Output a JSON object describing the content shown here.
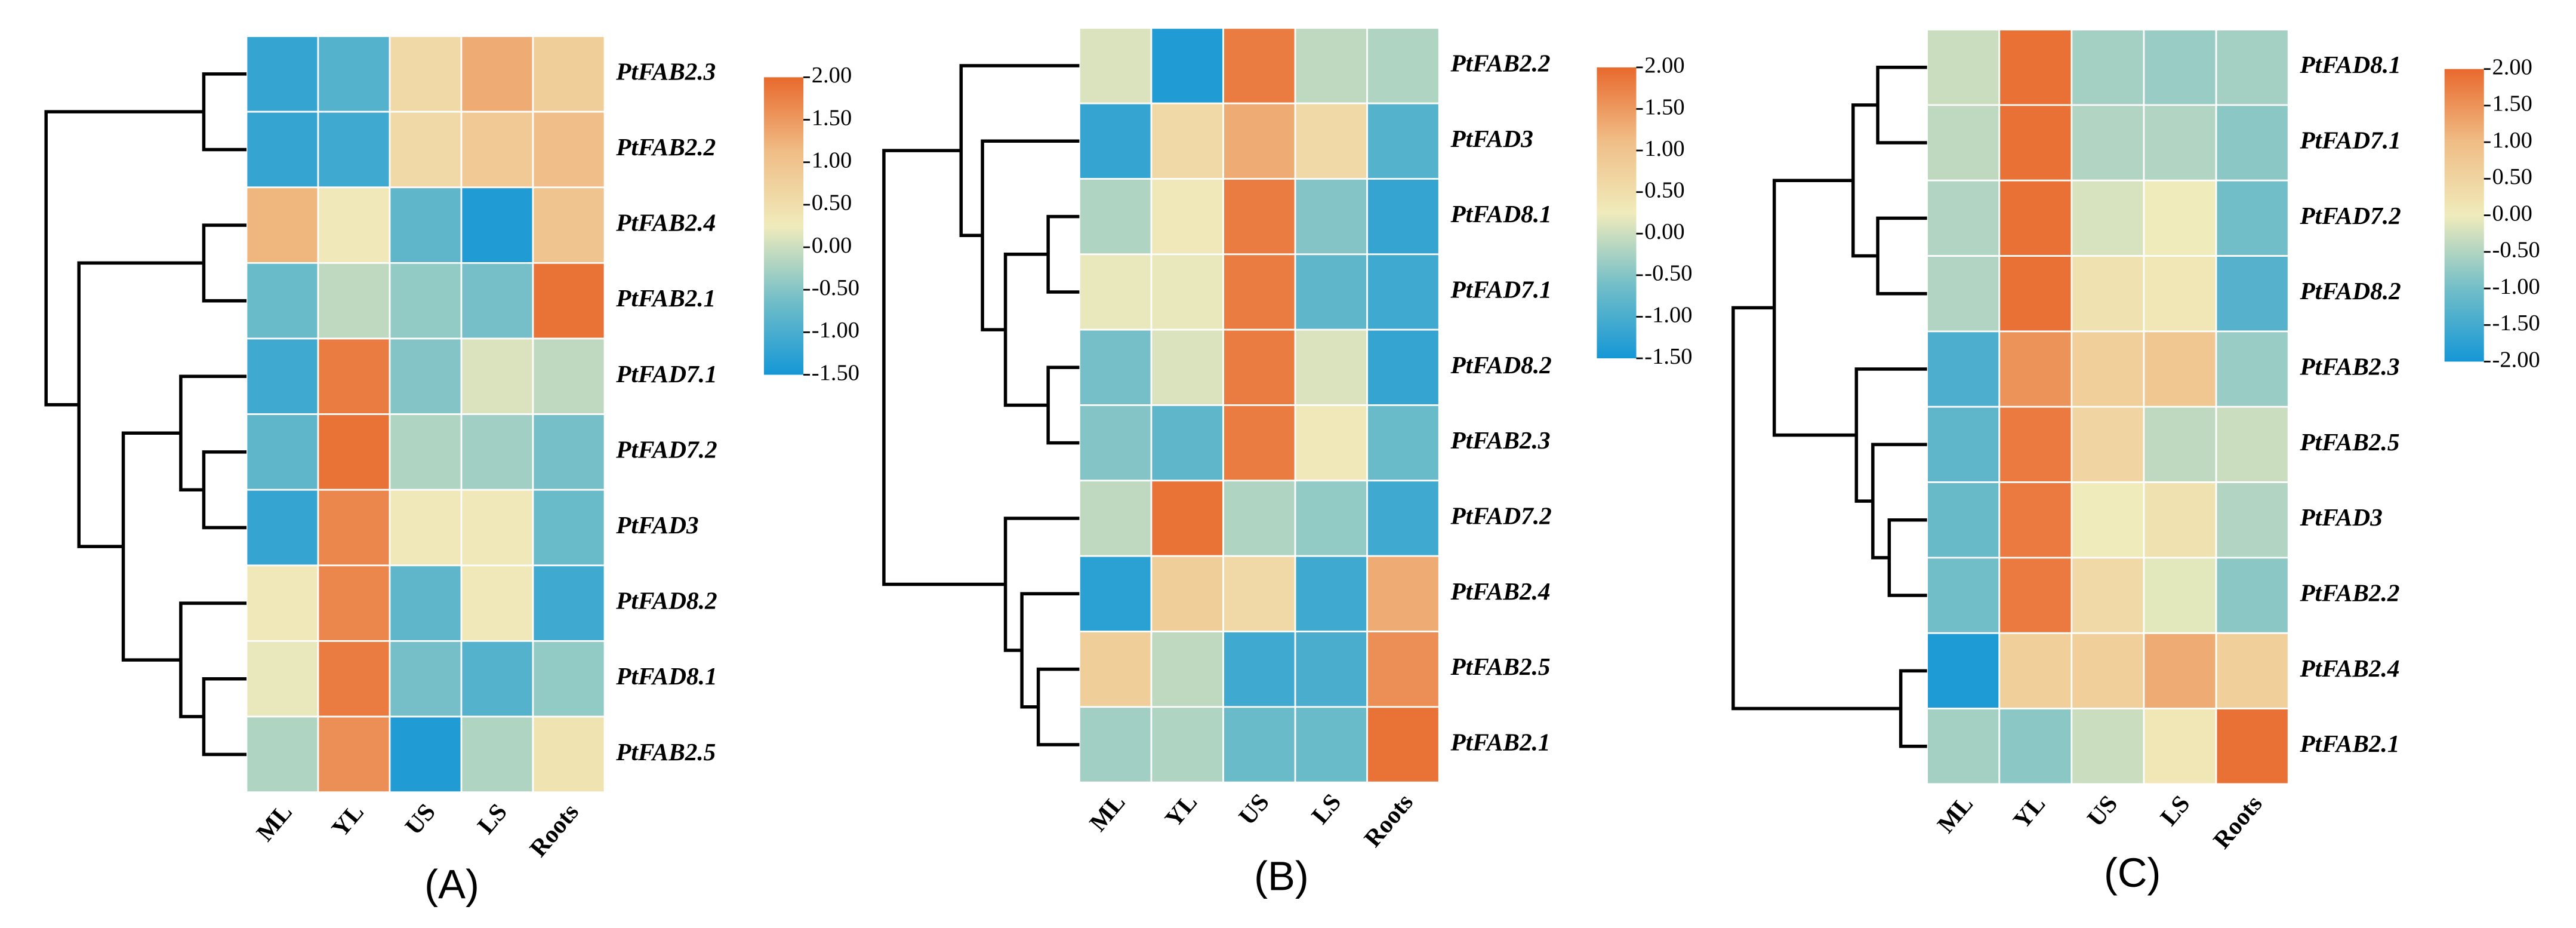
{
  "chart_data": [
    {
      "type": "heatmap",
      "label": "(A)",
      "rows": [
        "PtFAB2.3",
        "PtFAB2.2",
        "PtFAB2.4",
        "PtFAB2.1",
        "PtFAD7.1",
        "PtFAD7.2",
        "PtFAD3",
        "PtFAD8.2",
        "PtFAD8.1",
        "PtFAB2.5"
      ],
      "columns": [
        "ML",
        "YL",
        "US",
        "LS",
        "Roots"
      ],
      "values": [
        [
          -1.2,
          -0.9,
          0.6,
          1.3,
          0.8
        ],
        [
          -1.2,
          -1.1,
          0.6,
          0.9,
          1.1
        ],
        [
          1.2,
          0.3,
          -0.8,
          -1.4,
          1.0
        ],
        [
          -0.7,
          -0.1,
          -0.4,
          -0.6,
          1.9
        ],
        [
          -1.1,
          1.8,
          -0.5,
          0.1,
          -0.1
        ],
        [
          -0.8,
          1.9,
          -0.2,
          -0.3,
          -0.6
        ],
        [
          -1.2,
          1.7,
          0.3,
          0.3,
          -0.7
        ],
        [
          0.3,
          1.7,
          -0.8,
          0.3,
          -1.1
        ],
        [
          0.2,
          1.8,
          -0.6,
          -0.9,
          -0.4
        ],
        [
          -0.2,
          1.6,
          -1.4,
          -0.2,
          0.4
        ]
      ],
      "clim": [
        -1.5,
        2
      ],
      "cticks": [
        {
          "value": 2,
          "label": "2.00"
        },
        {
          "value": 1.5,
          "label": "1.50"
        },
        {
          "value": 1,
          "label": "1.00"
        },
        {
          "value": 0.5,
          "label": "0.50"
        },
        {
          "value": 0,
          "label": "0.00"
        },
        {
          "value": -0.5,
          "label": "-0.50"
        },
        {
          "value": -1,
          "label": "-1.00"
        },
        {
          "value": -1.5,
          "label": "-1.50"
        }
      ],
      "colormap": [
        "#1597d6",
        "#72bec8",
        "#f0ebbb",
        "#f0bd86",
        "#e8692d"
      ]
    },
    {
      "type": "heatmap",
      "label": "(B)",
      "rows": [
        "PtFAB2.2",
        "PtFAD3",
        "PtFAD8.1",
        "PtFAD7.1",
        "PtFAD8.2",
        "PtFAB2.3",
        "PtFAD7.2",
        "PtFAB2.4",
        "PtFAB2.5",
        "PtFAB2.1"
      ],
      "columns": [
        "ML",
        "YL",
        "US",
        "LS",
        "Roots"
      ],
      "values": [
        [
          0.1,
          -1.4,
          1.8,
          -0.1,
          -0.2
        ],
        [
          -1.2,
          0.6,
          1.3,
          0.6,
          -0.9
        ],
        [
          -0.2,
          0.3,
          1.8,
          -0.5,
          -1.2
        ],
        [
          0.2,
          0.2,
          1.8,
          -0.8,
          -1.1
        ],
        [
          -0.6,
          0.1,
          1.8,
          0.1,
          -1.2
        ],
        [
          -0.5,
          -0.8,
          1.8,
          0.3,
          -0.7
        ],
        [
          -0.1,
          1.9,
          -0.2,
          -0.4,
          -1.1
        ],
        [
          -1.3,
          0.8,
          0.6,
          -1.1,
          1.3
        ],
        [
          0.8,
          -0.1,
          -1.1,
          -1.0,
          1.6
        ],
        [
          -0.3,
          -0.2,
          -0.7,
          -0.7,
          1.9
        ]
      ],
      "clim": [
        -1.5,
        2
      ],
      "cticks": [
        {
          "value": 2,
          "label": "2.00"
        },
        {
          "value": 1.5,
          "label": "1.50"
        },
        {
          "value": 1,
          "label": "1.00"
        },
        {
          "value": 0.5,
          "label": "0.50"
        },
        {
          "value": 0,
          "label": "0.00"
        },
        {
          "value": -0.5,
          "label": "-0.50"
        },
        {
          "value": -1,
          "label": "-1.00"
        },
        {
          "value": -1.5,
          "label": "-1.50"
        }
      ],
      "colormap": [
        "#1597d6",
        "#72bec8",
        "#f0ebbb",
        "#f0bd86",
        "#e8692d"
      ]
    },
    {
      "type": "heatmap",
      "label": "(C)",
      "rows": [
        "PtFAD8.1",
        "PtFAD7.1",
        "PtFAD7.2",
        "PtFAD8.2",
        "PtFAB2.3",
        "PtFAB2.5",
        "PtFAD3",
        "PtFAB2.2",
        "PtFAB2.4",
        "PtFAB2.1"
      ],
      "columns": [
        "ML",
        "YL",
        "US",
        "LS",
        "Roots"
      ],
      "values": [
        [
          -0.3,
          1.9,
          -0.6,
          -0.7,
          -0.6
        ],
        [
          -0.4,
          1.9,
          -0.5,
          -0.5,
          -0.8
        ],
        [
          -0.5,
          1.9,
          -0.2,
          0,
          -1.0
        ],
        [
          -0.5,
          1.9,
          0.2,
          0.1,
          -1.3
        ],
        [
          -1.4,
          1.5,
          0.6,
          0.8,
          -0.7
        ],
        [
          -1.2,
          1.8,
          0.5,
          -0.4,
          -0.3
        ],
        [
          -1.1,
          1.8,
          0,
          0.2,
          -0.5
        ],
        [
          -1.0,
          1.8,
          0.4,
          -0.1,
          -0.8
        ],
        [
          -1.9,
          0.6,
          0.6,
          1.2,
          0.6
        ],
        [
          -0.6,
          -0.8,
          -0.3,
          0.1,
          1.9
        ]
      ],
      "clim": [
        -2,
        2
      ],
      "cticks": [
        {
          "value": 2,
          "label": "2.00"
        },
        {
          "value": 1.5,
          "label": "1.50"
        },
        {
          "value": 1,
          "label": "1.00"
        },
        {
          "value": 0.5,
          "label": "0.50"
        },
        {
          "value": 0,
          "label": "0.00"
        },
        {
          "value": -0.5,
          "label": "-0.50"
        },
        {
          "value": -1,
          "label": "-1.00"
        },
        {
          "value": -1.5,
          "label": "-1.50"
        },
        {
          "value": -2,
          "label": "-2.00"
        }
      ],
      "colormap": [
        "#1597d6",
        "#72bec8",
        "#f0ebbb",
        "#f0bd86",
        "#e8692d"
      ]
    }
  ]
}
